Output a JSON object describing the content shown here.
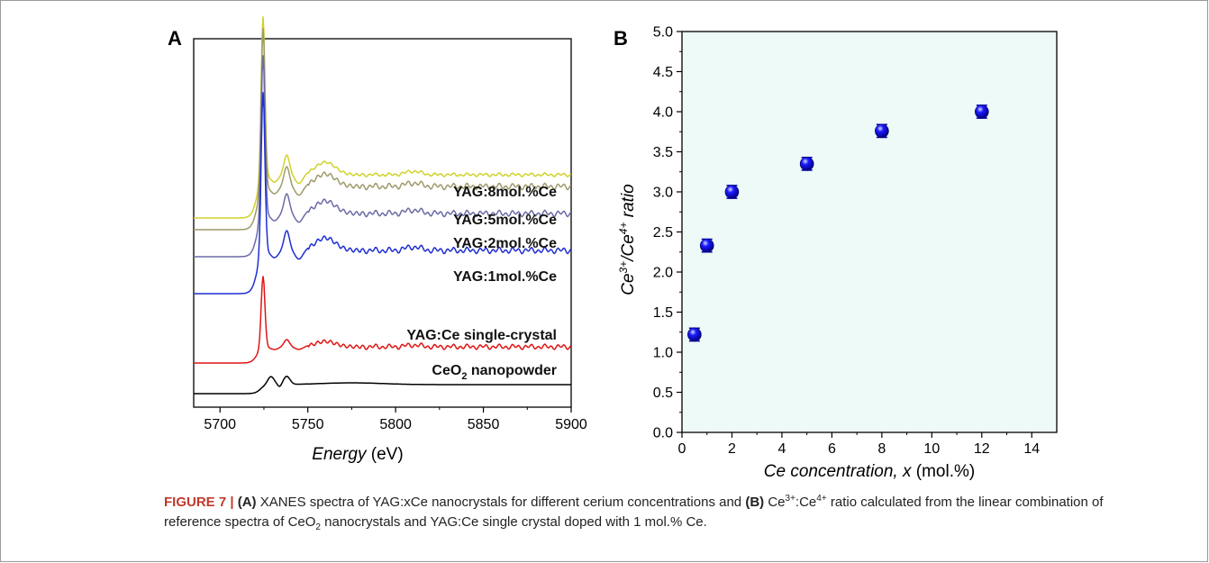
{
  "figure": {
    "caption": {
      "label": "FIGURE 7 |",
      "a_mark": "(A)",
      "text_1": "XANES spectra of YAG:xCe nanocrystals for different cerium concentrations and",
      "b_mark": "(B)",
      "ce": "Ce",
      "sup3": "3+",
      "sup4": "4+",
      "text_2": "ratio calculated from the linear combination of reference spectra of CeO",
      "sub2": "2",
      "text_3": "nanocrystals and YAG:Ce single crystal doped with 1 mol.% Ce."
    }
  },
  "chart_data": [
    {
      "panel": "A",
      "type": "line",
      "xlabel": "Energy",
      "xlabel_unit": "(eV)",
      "xlim": [
        5685,
        5900
      ],
      "xticks": [
        5700,
        5750,
        5800,
        5850,
        5900
      ],
      "yticks": false,
      "series": [
        {
          "name": "YAG:8mol.%Ce",
          "color": "#d1d12a",
          "baseline": 5,
          "peak": 5,
          "wiggle": 0.55
        },
        {
          "name": "YAG:5mol.%Ce",
          "color": "#9e9a6a",
          "baseline": 4,
          "peak": 5,
          "wiggle": 0.95
        },
        {
          "name": "YAG:2mol.%Ce",
          "color": "#6b6ba8",
          "baseline": 3,
          "peak": 5,
          "wiggle": 0.95
        },
        {
          "name": "YAG:1mol.%Ce",
          "color": "#1f2fd1",
          "baseline": 2,
          "peak": 5,
          "wiggle": 0.95
        },
        {
          "name": "YAG:Ce single-crystal",
          "color": "#e01515",
          "baseline": 1,
          "peak": 2.5,
          "wiggle": 0.8
        },
        {
          "name_main": "CeO",
          "name_sub": "2",
          "name_rest": " nanopowder",
          "color": "#000000",
          "baseline": 0,
          "kind": "ceo2"
        }
      ]
    },
    {
      "panel": "B",
      "type": "scatter",
      "xlabel": "Ce concentration, x",
      "xlabel_unit": "(mol.%)",
      "ylabel": "Ce3+/Ce4+ ratio",
      "ylabel_parts": {
        "ce": "Ce",
        "sup3": "3+",
        "sup4": "4+",
        "rest": " ratio"
      },
      "xlim": [
        0,
        15
      ],
      "ylim": [
        0,
        5
      ],
      "xticks": [
        0,
        2,
        4,
        6,
        8,
        10,
        12,
        14
      ],
      "yticks": [
        0.0,
        0.5,
        1.0,
        1.5,
        2.0,
        2.5,
        3.0,
        3.5,
        4.0,
        4.5,
        5.0
      ],
      "x": [
        0.5,
        1,
        2,
        5,
        8,
        12
      ],
      "y": [
        1.22,
        2.33,
        3.0,
        3.35,
        3.76,
        4.0
      ],
      "yerr": [
        0.08,
        0.08,
        0.08,
        0.08,
        0.08,
        0.08
      ],
      "background": "#eefaf7",
      "marker_color": "#1a1aff"
    }
  ],
  "panel_labels": {
    "a": "A",
    "b": "B"
  }
}
